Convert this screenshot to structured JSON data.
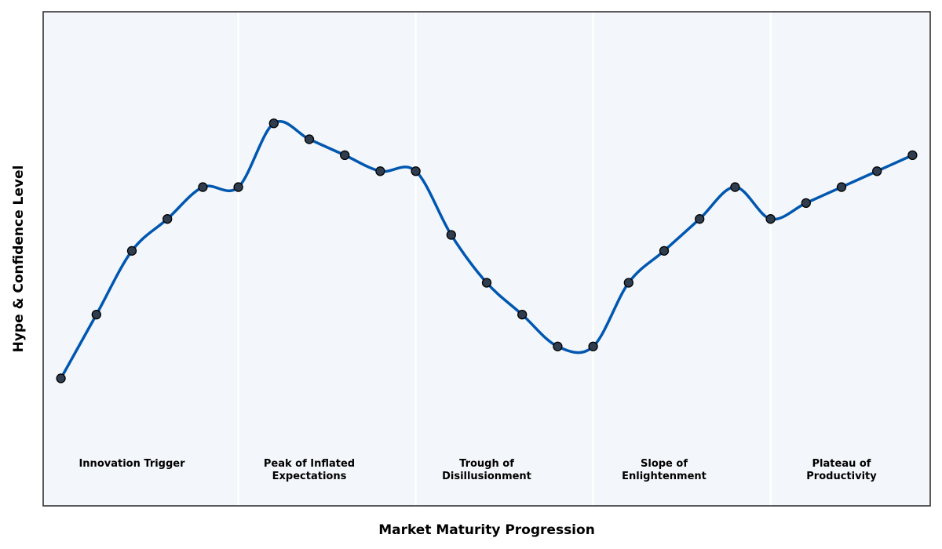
{
  "chart_data": {
    "type": "line",
    "title": "",
    "xlabel": "Market Maturity Progression",
    "ylabel": "Hype & Confidence Level",
    "xlim": [
      -0.5,
      24.5
    ],
    "ylim": [
      0,
      155
    ],
    "grid": false,
    "x": [
      0,
      1,
      2,
      3,
      4,
      5,
      6,
      7,
      8,
      9,
      10,
      11,
      12,
      13,
      14,
      15,
      16,
      17,
      18,
      19,
      20,
      21,
      22,
      23,
      24
    ],
    "series": [
      {
        "values": [
          40,
          60,
          80,
          90,
          100,
          100,
          120,
          115,
          110,
          105,
          105,
          85,
          70,
          60,
          50,
          50,
          70,
          80,
          90,
          100,
          90,
          95,
          100,
          105,
          110
        ]
      }
    ],
    "phase_boundaries": [
      5,
      10,
      15,
      20
    ],
    "phases": [
      {
        "lines": [
          "Innovation Trigger"
        ],
        "x": 2
      },
      {
        "lines": [
          "Peak of Inflated",
          "Expectations"
        ],
        "x": 7
      },
      {
        "lines": [
          "Trough of",
          "Disillusionment"
        ],
        "x": 12
      },
      {
        "lines": [
          "Slope of",
          "Enlightenment"
        ],
        "x": 17
      },
      {
        "lines": [
          "Plateau of",
          "Productivity"
        ],
        "x": 22
      }
    ],
    "colors": {
      "line": "#0057b0",
      "marker_fill": "#2f3d4f",
      "marker_edge": "#000000",
      "plot_background": "#f3f6fa",
      "phase_divider": "#ffffff",
      "frame": "#333333"
    }
  }
}
